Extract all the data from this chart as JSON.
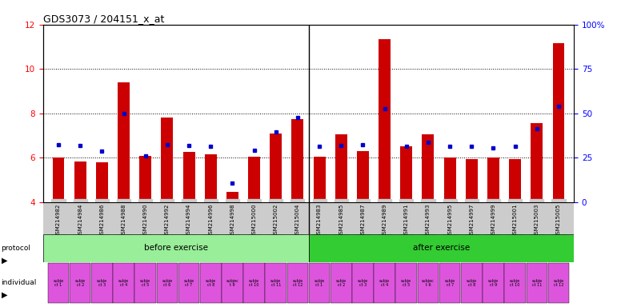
{
  "title": "GDS3073 / 204151_x_at",
  "samples": [
    "GSM214982",
    "GSM214984",
    "GSM214986",
    "GSM214988",
    "GSM214990",
    "GSM214992",
    "GSM214994",
    "GSM214996",
    "GSM214998",
    "GSM215000",
    "GSM215002",
    "GSM215004",
    "GSM214983",
    "GSM214985",
    "GSM214987",
    "GSM214989",
    "GSM214991",
    "GSM214993",
    "GSM214995",
    "GSM214997",
    "GSM214999",
    "GSM215001",
    "GSM215003",
    "GSM215005"
  ],
  "bar_values": [
    6.0,
    5.85,
    5.8,
    9.4,
    6.1,
    7.8,
    6.25,
    6.15,
    4.45,
    6.05,
    7.1,
    7.75,
    6.05,
    7.05,
    6.3,
    11.35,
    6.5,
    7.05,
    6.0,
    5.95,
    6.0,
    5.95,
    7.55,
    11.15
  ],
  "dot_values": [
    6.6,
    6.55,
    6.3,
    8.0,
    6.1,
    6.6,
    6.55,
    6.5,
    4.85,
    6.35,
    7.15,
    7.8,
    6.5,
    6.55,
    6.6,
    8.2,
    6.5,
    6.7,
    6.5,
    6.5,
    6.45,
    6.5,
    7.3,
    8.3
  ],
  "bar_color": "#cc0000",
  "dot_color": "#0000cc",
  "ylim_left": [
    4,
    12
  ],
  "yticks_left": [
    4,
    6,
    8,
    10,
    12
  ],
  "ylim_right": [
    0,
    100
  ],
  "yticks_right": [
    0,
    25,
    50,
    75,
    100
  ],
  "protocol_before_count": 12,
  "protocol_after_count": 12,
  "individual_labels_before": [
    "subje\nct 1",
    "subje\nct 2",
    "subje\nct 3",
    "subje\nct 4",
    "subje\nct 5",
    "subje\nct 6",
    "subje\nct 7",
    "subje\nct 8",
    "subjec\nt 9",
    "subje\nct 10",
    "subje\nct 11",
    "subje\nct 12"
  ],
  "individual_labels_after": [
    "subje\nct 1",
    "subje\nct 2",
    "subje\nct 3",
    "subje\nct 4",
    "subje\nct 5",
    "subjec\nt 6",
    "subje\nct 7",
    "subje\nct 8",
    "subje\nct 9",
    "subje\nct 10",
    "subje\nct 11",
    "subje\nct 12"
  ],
  "individual_color": "#dd55dd",
  "protocol_before_color": "#99ee99",
  "protocol_after_color": "#33cc33",
  "background_color": "#ffffff",
  "label_bg_color": "#cccccc",
  "bar_width": 0.55
}
